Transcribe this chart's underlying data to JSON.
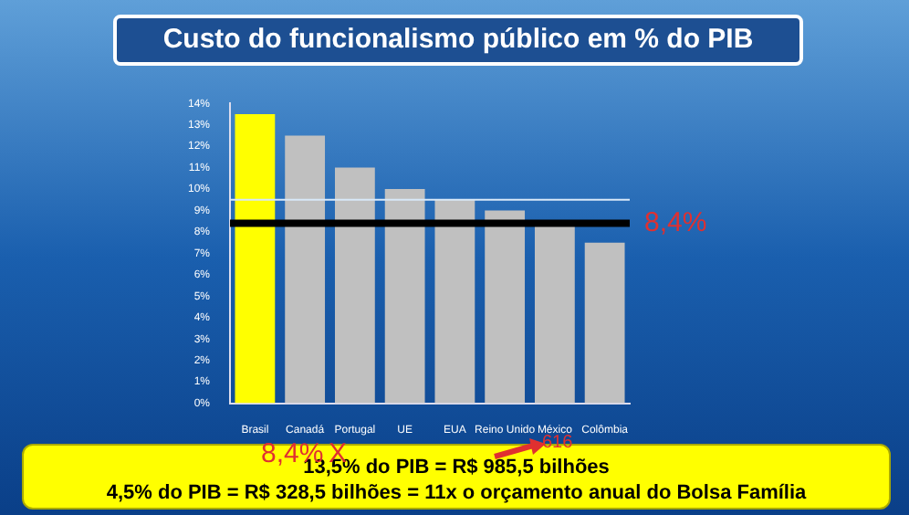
{
  "chart_data": {
    "type": "bar",
    "title": "Custo do funcionalismo público em % do PIB",
    "categories": [
      "Brasil",
      "Canadá",
      "Portugal",
      "UE",
      "EUA",
      "Reino Unido",
      "México",
      "Colômbia"
    ],
    "values": [
      13.5,
      12.5,
      11,
      10,
      9.5,
      9,
      8.5,
      7.5
    ],
    "colors": [
      "#ffff00",
      "#c0c0c0",
      "#c0c0c0",
      "#c0c0c0",
      "#c0c0c0",
      "#c0c0c0",
      "#c0c0c0",
      "#c0c0c0"
    ],
    "ylim": [
      0,
      14
    ],
    "yticks": [
      {
        "value": 0,
        "label": "0%"
      },
      {
        "value": 1,
        "label": "1%"
      },
      {
        "value": 2,
        "label": "2%"
      },
      {
        "value": 3,
        "label": "3%"
      },
      {
        "value": 4,
        "label": "4%"
      },
      {
        "value": 5,
        "label": "5%"
      },
      {
        "value": 6,
        "label": "6%"
      },
      {
        "value": 7,
        "label": "7%"
      },
      {
        "value": 8,
        "label": "8%"
      },
      {
        "value": 9,
        "label": "9%"
      },
      {
        "value": 10,
        "label": "10%"
      },
      {
        "value": 11,
        "label": "11%"
      },
      {
        "value": 12,
        "label": "12%"
      },
      {
        "value": 13,
        "label": "13%"
      },
      {
        "value": 14,
        "label": "14%"
      }
    ],
    "grid": false,
    "legend": false,
    "ref_lines": [
      {
        "axis": "y",
        "value": 8.4,
        "label": "8,4%",
        "color": "#000000"
      },
      {
        "axis": "y",
        "value": 9.5,
        "color": "#d8e8f8"
      }
    ],
    "annotations": [
      "13,5% do PIB = R$ 985,5 bilhões",
      "4,5% do PIB = R$ 328,5 bilhões = 11x o orçamento anual do Bolsa Família",
      "8,4%",
      "X",
      "616"
    ]
  }
}
